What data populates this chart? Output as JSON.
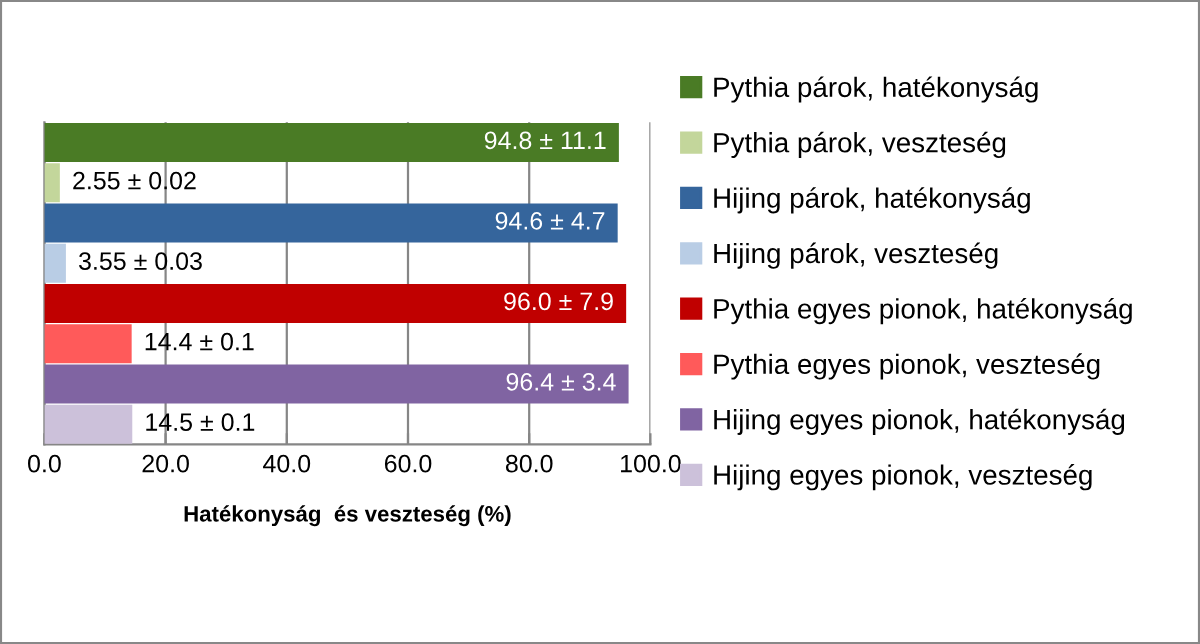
{
  "chart_data": {
    "type": "bar",
    "orientation": "horizontal",
    "xlabel": "Hatékonyság  és veszteség (%)",
    "categories": [
      null,
      null,
      null,
      null,
      null,
      null,
      null,
      null
    ],
    "xlim": [
      0,
      100
    ],
    "xticks": [
      {
        "value": 0,
        "label": "0.0"
      },
      {
        "value": 20,
        "label": "20.0"
      },
      {
        "value": 40,
        "label": "40.0"
      },
      {
        "value": 60,
        "label": "60.0"
      },
      {
        "value": 80,
        "label": "80.0"
      },
      {
        "value": 100,
        "label": "100.0"
      }
    ],
    "grid": "x",
    "legend": "right",
    "series": [
      {
        "name": "Pythia párok, hatékonyság",
        "color": "#4a7b25",
        "values": [
          94.8,
          null,
          null,
          null,
          null,
          null,
          null,
          null
        ],
        "value_labels": [
          "94.8 ± 11.1",
          null,
          null,
          null,
          null,
          null,
          null,
          null
        ]
      },
      {
        "name": "Pythia párok, veszteség",
        "color": "#c3d69b",
        "values": [
          null,
          2.55,
          null,
          null,
          null,
          null,
          null,
          null
        ],
        "value_labels": [
          null,
          "2.55 ± 0.02",
          null,
          null,
          null,
          null,
          null,
          null
        ]
      },
      {
        "name": "Hijing párok, hatékonyság",
        "color": "#35659c",
        "values": [
          null,
          null,
          94.6,
          null,
          null,
          null,
          null,
          null
        ],
        "value_labels": [
          null,
          null,
          "94.6 ± 4.7",
          null,
          null,
          null,
          null,
          null
        ]
      },
      {
        "name": "Hijing párok, veszteség",
        "color": "#b9cde5",
        "values": [
          null,
          null,
          null,
          3.55,
          null,
          null,
          null,
          null
        ],
        "value_labels": [
          null,
          null,
          null,
          "3.55 ± 0.03",
          null,
          null,
          null,
          null
        ]
      },
      {
        "name": "Pythia egyes pionok, hatékonyság",
        "color": "#c00000",
        "values": [
          null,
          null,
          null,
          null,
          96.0,
          null,
          null,
          null
        ],
        "value_labels": [
          null,
          null,
          null,
          null,
          "96.0 ± 7.9",
          null,
          null,
          null
        ]
      },
      {
        "name": "Pythia egyes pionok, veszteség",
        "color": "#ff5a5a",
        "values": [
          null,
          null,
          null,
          null,
          null,
          14.4,
          null,
          null
        ],
        "value_labels": [
          null,
          null,
          null,
          null,
          null,
          "14.4 ± 0.1",
          null,
          null
        ]
      },
      {
        "name": "Hijing egyes pionok, hatékonyság",
        "color": "#8064a2",
        "values": [
          null,
          null,
          null,
          null,
          null,
          null,
          96.4,
          null
        ],
        "value_labels": [
          null,
          null,
          null,
          null,
          null,
          null,
          "96.4 ± 3.4",
          null
        ]
      },
      {
        "name": "Hijing egyes pionok, veszteség",
        "color": "#ccc1da",
        "values": [
          null,
          null,
          null,
          null,
          null,
          null,
          null,
          14.5
        ],
        "value_labels": [
          null,
          null,
          null,
          null,
          null,
          null,
          null,
          "14.5 ± 0.1"
        ]
      }
    ]
  }
}
